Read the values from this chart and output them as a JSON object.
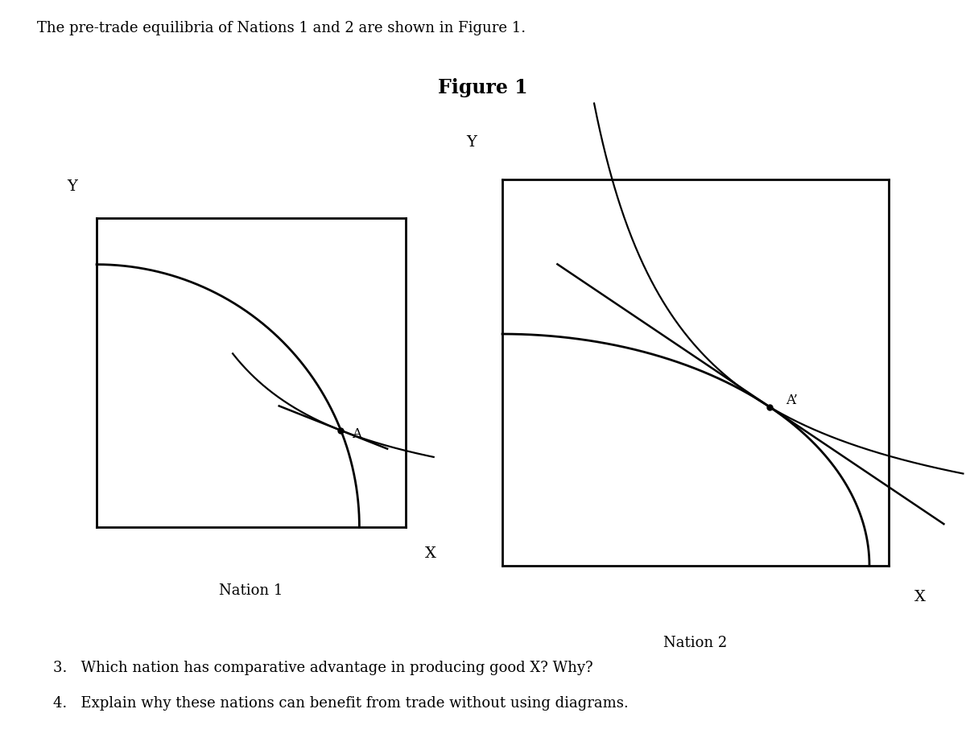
{
  "figure_title": "Figure 1",
  "header_text": "The pre-trade equilibria of Nations 1 and 2 are shown in Figure 1.",
  "nation1_label": "Nation 1",
  "nation2_label": "Nation 2",
  "point_a_label": "A",
  "point_a_prime_label": "A’",
  "x_label": "X",
  "y_label": "Y",
  "question3": "3.   Which nation has comparative advantage in producing good X? Why?",
  "question4": "4.   Explain why these nations can benefit from trade without using diagrams.",
  "background_color": "#ffffff",
  "line_color": "#000000",
  "text_color": "#000000",
  "fontsize_header": 13,
  "fontsize_title": 17,
  "fontsize_axis_label": 14,
  "fontsize_nation_label": 13,
  "fontsize_point_label": 12,
  "fontsize_questions": 13
}
